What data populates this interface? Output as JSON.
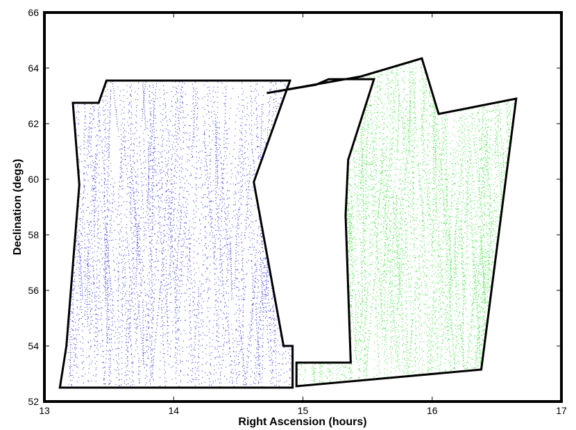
{
  "chart_data": {
    "type": "scatter",
    "title": "",
    "xlabel": "Right Ascension (hours)",
    "ylabel": "Declination (degs)",
    "xlim": [
      13,
      17
    ],
    "ylim": [
      52,
      66
    ],
    "xticks": [
      13,
      14,
      15,
      16,
      17
    ],
    "yticks": [
      52,
      54,
      56,
      58,
      60,
      62,
      64,
      66
    ],
    "grid": false,
    "series": [
      {
        "color": "#1f1fe0",
        "boundary": [
          [
            13.12,
            52.5
          ],
          [
            13.17,
            54.0
          ],
          [
            13.27,
            59.8
          ],
          [
            13.22,
            62.75
          ],
          [
            13.42,
            62.75
          ],
          [
            13.48,
            63.55
          ],
          [
            14.2,
            63.55
          ],
          [
            14.9,
            63.55
          ],
          [
            14.62,
            59.9
          ],
          [
            14.85,
            54.0
          ],
          [
            14.92,
            54.0
          ],
          [
            14.92,
            52.5
          ],
          [
            14.4,
            52.5
          ],
          [
            13.12,
            52.5
          ]
        ],
        "points": "scattered along the area: RA 13.12–15.55 h, Dec 52.5–63.7°"
      },
      {
        "color": "#22e022",
        "boundary": [
          [
            14.72,
            63.1
          ],
          [
            15.1,
            63.4
          ],
          [
            15.2,
            63.6
          ],
          [
            15.55,
            63.6
          ],
          [
            15.35,
            60.7
          ],
          [
            15.33,
            58.7
          ],
          [
            15.37,
            53.4
          ],
          [
            14.95,
            53.4
          ],
          [
            14.95,
            52.55
          ],
          [
            16.38,
            53.15
          ],
          [
            16.65,
            62.9
          ],
          [
            16.05,
            62.35
          ],
          [
            15.92,
            64.35
          ],
          [
            15.45,
            63.7
          ],
          [
            14.72,
            63.1
          ]
        ],
        "points": "scattered along the area: RA 14.72–16.67 h, Dec 52.5–64.3°"
      }
    ]
  }
}
